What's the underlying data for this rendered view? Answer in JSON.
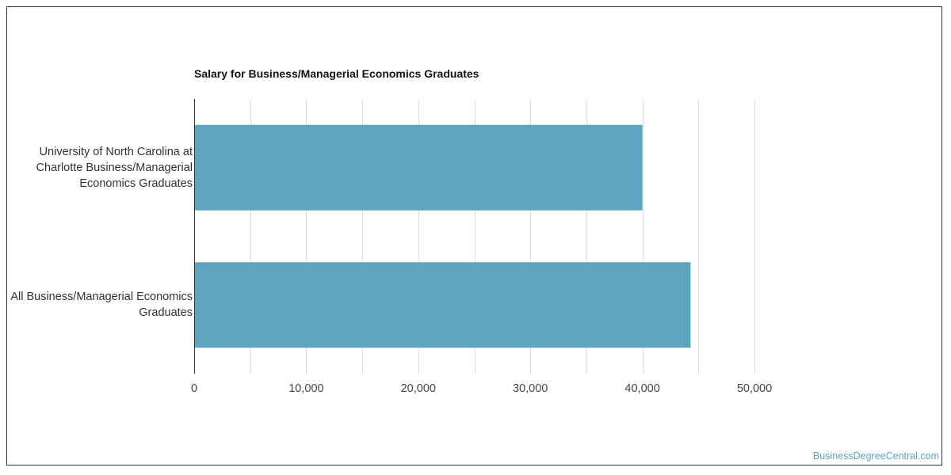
{
  "chart_data": {
    "type": "bar",
    "orientation": "horizontal",
    "title": "Salary for Business/Managerial Economics Graduates",
    "categories": [
      "University of North Carolina at Charlotte Business/Managerial Economics Graduates",
      "All Business/Managerial Economics Graduates"
    ],
    "values": [
      40000,
      44300
    ],
    "xlim": [
      0,
      50000
    ],
    "xticks": [
      0,
      10000,
      20000,
      30000,
      40000,
      50000
    ],
    "xtick_labels": [
      "0",
      "10,000",
      "20,000",
      "30,000",
      "40,000",
      "50,000"
    ],
    "xlabel": "",
    "ylabel": "",
    "grid": true,
    "bar_color": "#5ea3c0"
  },
  "watermark": "BusinessDegreeCentral.com"
}
